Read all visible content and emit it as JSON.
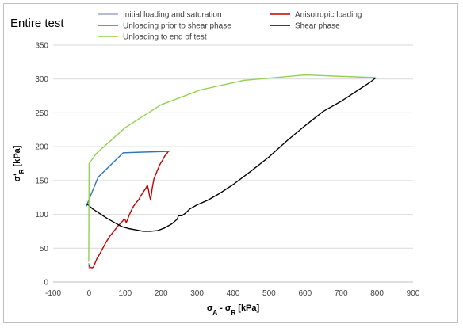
{
  "chart_data": {
    "type": "line",
    "title": "Entire test",
    "xlabel": {
      "parts": [
        {
          "t": "σ",
          "sub": false
        },
        {
          "t": "A",
          "sub": true
        },
        {
          "t": " - σ",
          "sub": false
        },
        {
          "t": "R",
          "sub": true
        },
        {
          "t": " [kPa]",
          "sub": false
        }
      ]
    },
    "ylabel": {
      "parts": [
        {
          "t": "σ'",
          "sub": false
        },
        {
          "t": "R",
          "sub": true
        },
        {
          "t": " [kPa]",
          "sub": false
        }
      ]
    },
    "xlim": [
      -100,
      900
    ],
    "ylim": [
      0,
      350
    ],
    "xticks": [
      -100,
      0,
      100,
      200,
      300,
      400,
      500,
      600,
      700,
      800,
      900
    ],
    "yticks": [
      0,
      50,
      100,
      150,
      200,
      250,
      300,
      350
    ],
    "grid": "horizontal",
    "legend_position": "top",
    "series": [
      {
        "name": "Initial loading and saturation",
        "color": "#9aa7c0",
        "points": [
          [
            -1,
            28
          ],
          [
            0,
            25
          ],
          [
            0,
            20
          ],
          [
            -1,
            27
          ]
        ]
      },
      {
        "name": "Anisotropic loading",
        "color": "#c00000",
        "points": [
          [
            0,
            25
          ],
          [
            2,
            22
          ],
          [
            8,
            21
          ],
          [
            12,
            22
          ],
          [
            15,
            26
          ],
          [
            18,
            30
          ],
          [
            22,
            35
          ],
          [
            28,
            40
          ],
          [
            34,
            46
          ],
          [
            40,
            52
          ],
          [
            46,
            58
          ],
          [
            52,
            63
          ],
          [
            58,
            68
          ],
          [
            64,
            72
          ],
          [
            70,
            76
          ],
          [
            76,
            80
          ],
          [
            82,
            84
          ],
          [
            88,
            87
          ],
          [
            93,
            90
          ],
          [
            97,
            93
          ],
          [
            100,
            92
          ],
          [
            103,
            88
          ],
          [
            106,
            91
          ],
          [
            110,
            97
          ],
          [
            115,
            103
          ],
          [
            120,
            109
          ],
          [
            126,
            114
          ],
          [
            132,
            118
          ],
          [
            138,
            122
          ],
          [
            143,
            127
          ],
          [
            148,
            131
          ],
          [
            153,
            135
          ],
          [
            158,
            139
          ],
          [
            162,
            143
          ],
          [
            165,
            136
          ],
          [
            168,
            127
          ],
          [
            171,
            121
          ],
          [
            175,
            138
          ],
          [
            180,
            152
          ],
          [
            186,
            160
          ],
          [
            192,
            168
          ],
          [
            198,
            175
          ],
          [
            204,
            180
          ],
          [
            210,
            186
          ],
          [
            216,
            190
          ],
          [
            220,
            193
          ],
          [
            223,
            194
          ]
        ]
      },
      {
        "name": "Unloading prior to shear phase",
        "color": "#2e75b6",
        "points": [
          [
            -5,
            115
          ],
          [
            -8,
            112
          ],
          [
            25,
            155
          ],
          [
            95,
            191
          ],
          [
            150,
            192
          ],
          [
            223,
            193
          ]
        ]
      },
      {
        "name": "Shear phase",
        "color": "#000000",
        "points": [
          [
            -5,
            115
          ],
          [
            10,
            108
          ],
          [
            30,
            101
          ],
          [
            50,
            94
          ],
          [
            70,
            88
          ],
          [
            90,
            82
          ],
          [
            110,
            79
          ],
          [
            130,
            77
          ],
          [
            150,
            75
          ],
          [
            170,
            75
          ],
          [
            190,
            76
          ],
          [
            210,
            80
          ],
          [
            230,
            86
          ],
          [
            245,
            93
          ],
          [
            248,
            98
          ],
          [
            258,
            98
          ],
          [
            268,
            102
          ],
          [
            280,
            108
          ],
          [
            300,
            114
          ],
          [
            330,
            121
          ],
          [
            360,
            130
          ],
          [
            400,
            144
          ],
          [
            450,
            164
          ],
          [
            500,
            185
          ],
          [
            550,
            209
          ],
          [
            600,
            231
          ],
          [
            650,
            252
          ],
          [
            700,
            267
          ],
          [
            740,
            281
          ],
          [
            780,
            295
          ],
          [
            797,
            302
          ]
        ]
      },
      {
        "name": "Unloading to end of test",
        "color": "#92d050",
        "points": [
          [
            797,
            302
          ],
          [
            600,
            306
          ],
          [
            430,
            298
          ],
          [
            310,
            284
          ],
          [
            200,
            262
          ],
          [
            100,
            228
          ],
          [
            20,
            190
          ],
          [
            0,
            175
          ],
          [
            -1,
            30
          ]
        ]
      }
    ]
  }
}
